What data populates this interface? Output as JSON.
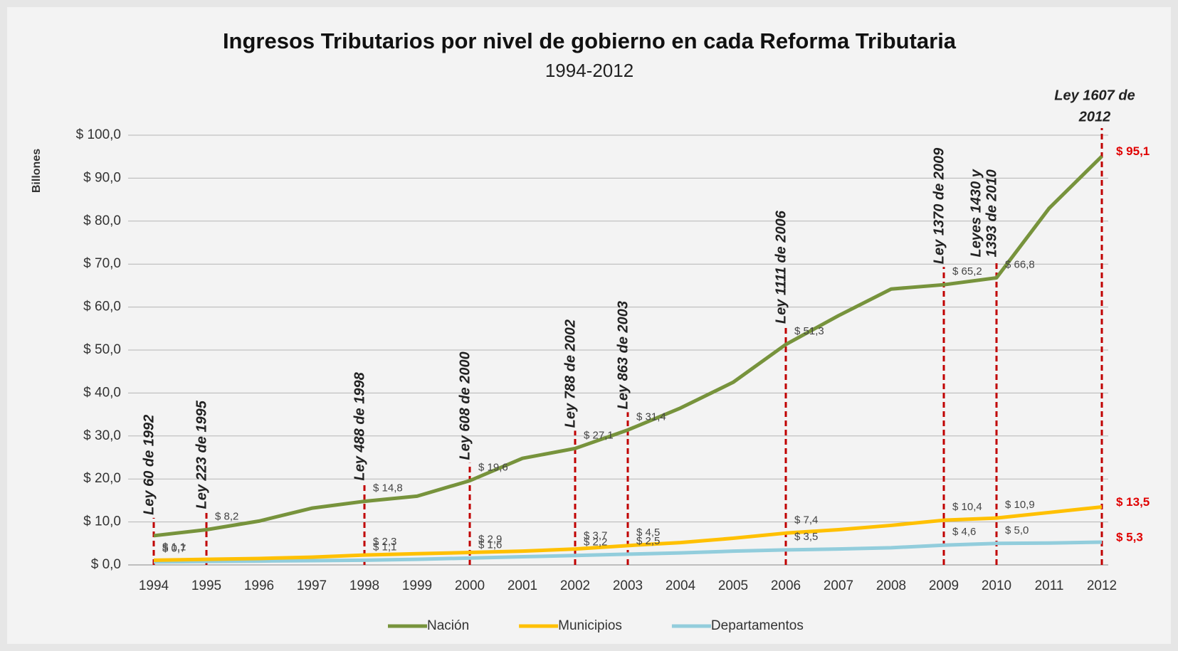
{
  "chart_data": {
    "type": "line",
    "title": "Ingresos Tributarios por nivel de gobierno en cada Reforma Tributaria",
    "subtitle": "1994-2012",
    "y_label": "Billones",
    "categories": [
      "1994",
      "1995",
      "1996",
      "1997",
      "1998",
      "1999",
      "2000",
      "2001",
      "2002",
      "2003",
      "2004",
      "2005",
      "2006",
      "2007",
      "2008",
      "2009",
      "2010",
      "2011",
      "2012"
    ],
    "ylim": [
      0,
      100
    ],
    "yticks": [
      {
        "value": 0,
        "label": "$ 0,0"
      },
      {
        "value": 10,
        "label": "$ 10,0"
      },
      {
        "value": 20,
        "label": "$ 20,0"
      },
      {
        "value": 30,
        "label": "$ 30,0"
      },
      {
        "value": 40,
        "label": "$ 40,0"
      },
      {
        "value": 50,
        "label": "$ 50,0"
      },
      {
        "value": 60,
        "label": "$ 60,0"
      },
      {
        "value": 70,
        "label": "$ 70,0"
      },
      {
        "value": 80,
        "label": "$ 80,0"
      },
      {
        "value": 90,
        "label": "$ 90,0"
      },
      {
        "value": 100,
        "label": "$ 100,0"
      }
    ],
    "grid": true,
    "legend": "bottom",
    "series": [
      {
        "name": "Nación",
        "color": "#77933c",
        "values": [
          6.8,
          8.2,
          10.2,
          13.2,
          14.8,
          16.0,
          19.6,
          24.8,
          27.1,
          31.4,
          36.5,
          42.5,
          51.3,
          58.0,
          64.2,
          65.2,
          66.8,
          83.0,
          95.1
        ],
        "value_labels": [
          null,
          "$ 8,2",
          null,
          null,
          "$ 14,8",
          null,
          "$ 19,6",
          null,
          "$ 27,1",
          "$ 31,4",
          null,
          null,
          "$ 51,3",
          null,
          null,
          "$ 65,2",
          "$ 66,8",
          null,
          "$ 95,1"
        ]
      },
      {
        "name": "Municipios",
        "color": "#ffc000",
        "values": [
          1.1,
          1.3,
          1.5,
          1.8,
          2.3,
          2.6,
          2.9,
          3.2,
          3.7,
          4.5,
          5.2,
          6.2,
          7.4,
          8.2,
          9.2,
          10.4,
          10.9,
          12.2,
          13.5
        ],
        "value_labels": [
          "$ 1,1",
          null,
          null,
          null,
          "$ 2,3",
          null,
          "$ 2,9",
          null,
          "$ 3,7",
          "$ 4,5",
          null,
          null,
          "$ 7,4",
          null,
          null,
          "$ 10,4",
          "$ 10,9",
          null,
          "$ 13,5"
        ]
      },
      {
        "name": "Departamentos",
        "color": "#92cddc",
        "values": [
          0.7,
          0.8,
          0.9,
          1.0,
          1.1,
          1.3,
          1.6,
          1.9,
          2.2,
          2.5,
          2.8,
          3.2,
          3.5,
          3.7,
          4.0,
          4.6,
          5.0,
          5.1,
          5.3
        ],
        "value_labels": [
          "$ 0,7",
          null,
          null,
          null,
          "$ 1,1",
          null,
          "$ 1,6",
          null,
          "$ 2,2",
          "$ 2,5",
          null,
          null,
          "$ 3,5",
          null,
          null,
          "$ 4,6",
          "$ 5,0",
          null,
          "$ 5,3"
        ]
      }
    ],
    "annotations": [
      {
        "x": "1994",
        "text": [
          "Ley 60 de 1992"
        ]
      },
      {
        "x": "1995",
        "text": [
          "Ley 223 de 1995"
        ]
      },
      {
        "x": "1998",
        "text": [
          "Ley 488 de 1998"
        ]
      },
      {
        "x": "2000",
        "text": [
          "Ley 608 de 2000"
        ]
      },
      {
        "x": "2002",
        "text": [
          "Ley 788 de 2002"
        ]
      },
      {
        "x": "2003",
        "text": [
          "Ley 863 de 2003"
        ]
      },
      {
        "x": "2006",
        "text": [
          "Ley 1111 de 2006"
        ]
      },
      {
        "x": "2009",
        "text": [
          "Ley 1370 de 2009"
        ]
      },
      {
        "x": "2010",
        "text": [
          "Leyes 1430 y",
          "1393 de 2010"
        ]
      },
      {
        "x": "2012",
        "text": [
          "Ley 1607 de",
          "2012"
        ]
      }
    ]
  }
}
